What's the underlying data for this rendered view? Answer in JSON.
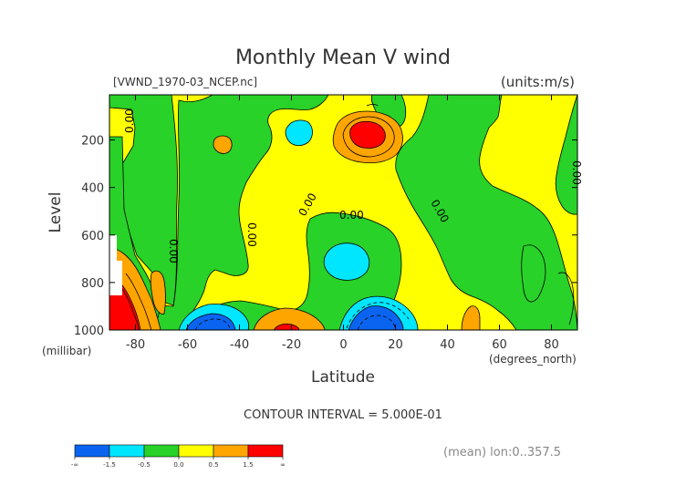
{
  "chart_data": {
    "type": "contour",
    "title": "Monthly Mean V wind",
    "file_label": "[VWND_1970-03_NCEP.nc]",
    "units_label": "(units:m/s)",
    "xlabel": "Latitude",
    "xunits": "(degrees_north)",
    "ylabel": "Level",
    "yunits": "(millibar)",
    "xlim": [
      -90,
      90
    ],
    "ylim": [
      1000,
      10
    ],
    "x_ticks": [
      "-80",
      "-60",
      "-40",
      "-20",
      "0",
      "20",
      "40",
      "60",
      "80"
    ],
    "x_tick_values": [
      -80,
      -60,
      -40,
      -20,
      0,
      20,
      40,
      60,
      80
    ],
    "y_ticks": [
      "200",
      "400",
      "600",
      "800",
      "1000"
    ],
    "y_tick_values": [
      200,
      400,
      600,
      800,
      1000
    ],
    "contour_labels": [
      "0.00",
      "0.00",
      "0.00",
      "0.00",
      "0.00",
      "0.00",
      "0.00"
    ],
    "contour_interval_text": "CONTOUR INTERVAL = 5.000E-01",
    "footer_text": "(mean) lon:0..357.5",
    "colorbar": {
      "labels": [
        "-∞",
        "-1.5",
        "-0.5",
        "0.0",
        "0.5",
        "1.5",
        "∞"
      ],
      "colors": [
        "#0a64f0",
        "#00e6ff",
        "#28d228",
        "#ffff00",
        "#ffa500",
        "#ff0000"
      ]
    }
  }
}
